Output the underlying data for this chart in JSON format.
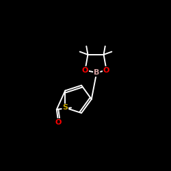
{
  "bg_color": "#000000",
  "bond_color": "#ffffff",
  "atom_colors": {
    "B": "#d4a0a0",
    "O": "#ff0000",
    "S": "#ccaa00",
    "C": "#ffffff"
  },
  "figsize": [
    2.5,
    2.5
  ],
  "dpi": 100
}
